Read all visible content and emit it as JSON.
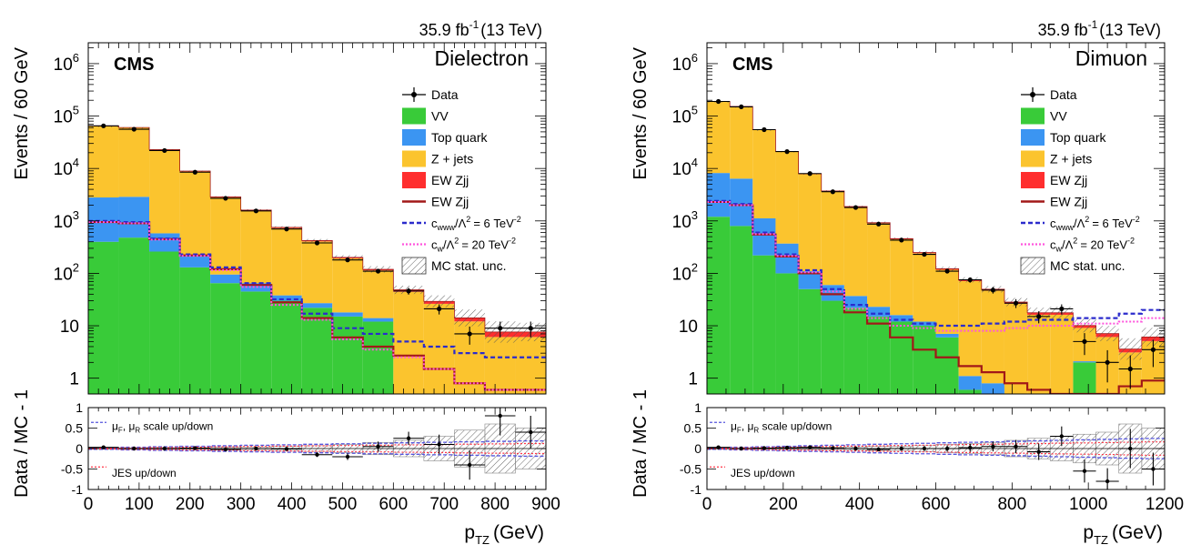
{
  "chart_data": [
    {
      "type": "histogram",
      "channel_label": "Dielectron",
      "experiment_label": "CMS",
      "lumi_label": "35.9 fb",
      "lumi_sup": "-1",
      "energy_label": "(13 TeV)",
      "ylabel": "Events / 60 GeV",
      "ratio_ylabel": "Data / MC - 1",
      "xlabel_main": "p",
      "xlabel_sub": "TZ",
      "xlabel_unit": "(GeV)",
      "x_ticks": [
        0,
        100,
        200,
        300,
        400,
        500,
        600,
        700,
        800,
        900
      ],
      "y_ticks": [
        {
          "value": 1,
          "base": "1",
          "exp": ""
        },
        {
          "value": 10,
          "base": "10",
          "exp": ""
        },
        {
          "value": 100,
          "base": "10",
          "exp": "2"
        },
        {
          "value": 1000,
          "base": "10",
          "exp": "3"
        },
        {
          "value": 10000,
          "base": "10",
          "exp": "4"
        },
        {
          "value": 100000,
          "base": "10",
          "exp": "5"
        },
        {
          "value": 1000000,
          "base": "10",
          "exp": "6"
        }
      ],
      "ratio_ticks": [
        "-1",
        "-0.5",
        "0",
        "0.5",
        "1"
      ],
      "xlim": [
        0,
        900
      ],
      "ylim": [
        0.5,
        2500000
      ],
      "ylog": true,
      "ratio_ylim": [
        -1,
        1
      ],
      "bin_edges": [
        0,
        60,
        120,
        180,
        240,
        300,
        360,
        420,
        480,
        540,
        600,
        660,
        720,
        780,
        840,
        900
      ],
      "stack": {
        "vv": [
          400,
          480,
          260,
          130,
          65,
          45,
          30,
          22,
          15,
          12,
          0,
          0,
          0,
          0,
          0
        ],
        "top": [
          2400,
          2400,
          320,
          90,
          30,
          20,
          8,
          5,
          3,
          2,
          0.4,
          0.2,
          0.1,
          0.1,
          0.1
        ],
        "zjets": [
          61000,
          57000,
          22000,
          8500,
          2700,
          1500,
          690,
          380,
          175,
          100,
          44,
          26,
          12,
          6,
          6
        ],
        "ewzjj": [
          600,
          600,
          400,
          200,
          80,
          40,
          25,
          15,
          8,
          5,
          4,
          3,
          2,
          1.5,
          1.5
        ]
      },
      "ewzjj_line": [
        950,
        900,
        450,
        220,
        120,
        60,
        28,
        14,
        6,
        4,
        2.7,
        1.5,
        0.8,
        0.6,
        0.6
      ],
      "cwww_line": [
        1000,
        950,
        460,
        230,
        130,
        65,
        32,
        17,
        9,
        7,
        5,
        4,
        3,
        2.5,
        2.5
      ],
      "cw_line": [
        950,
        900,
        440,
        215,
        115,
        55,
        25,
        13,
        5.5,
        3.5,
        2.5,
        1.5,
        0.8,
        0.6,
        0.6
      ],
      "data": [
        65000,
        56000,
        22000,
        8500,
        2700,
        1550,
        700,
        380,
        180,
        110,
        46,
        21,
        7,
        9,
        9
      ],
      "ratio": [
        0.03,
        0.0,
        0.0,
        0.01,
        -0.02,
        0.0,
        -0.01,
        -0.15,
        -0.2,
        0.05,
        0.25,
        0.1,
        -0.4,
        0.8,
        0.4
      ],
      "ratio_unc": [
        0.01,
        0.01,
        0.02,
        0.02,
        0.03,
        0.04,
        0.05,
        0.07,
        0.1,
        0.15,
        0.2,
        0.3,
        0.45,
        0.6,
        0.5
      ],
      "legend": {
        "data": "Data",
        "vv": "VV",
        "top": "Top quark",
        "zjets": "Z + jets",
        "ewzjj": "EW Zjj",
        "ewzjj_line": "EW Zjj",
        "cwww": "c",
        "cwww_sub": "www",
        "cwww_rest": "/Λ",
        "cwww_val": "= 6 TeV",
        "cw": "c",
        "cw_sub": "w",
        "cw_rest": "/Λ",
        "cw_val": "= 20 TeV",
        "sq": "2",
        "neg2": "-2",
        "unc": "MC stat. unc."
      },
      "ratio_legend": {
        "mu_line": "μ",
        "mu_f": "F",
        "mu_mid": ", μ",
        "mu_r": "R",
        "mu_rest": " scale up/down",
        "jes": "JES up/down"
      },
      "colors": {
        "vv": "#39cb39",
        "top": "#3b95f2",
        "zjets": "#fbc42e",
        "ewzjj": "#ff2e2e",
        "ewzjj_line": "#a21818",
        "cwww": "#2b2bcc",
        "cw": "#ff55dd"
      }
    },
    {
      "type": "histogram",
      "channel_label": "Dimuon",
      "experiment_label": "CMS",
      "lumi_label": "35.9 fb",
      "lumi_sup": "-1",
      "energy_label": "(13 TeV)",
      "ylabel": "Events / 60 GeV",
      "ratio_ylabel": "Data / MC - 1",
      "xlabel_main": "p",
      "xlabel_sub": "TZ",
      "xlabel_unit": "(GeV)",
      "x_ticks": [
        0,
        200,
        400,
        600,
        800,
        1000,
        1200
      ],
      "y_ticks": [
        {
          "value": 1,
          "base": "1",
          "exp": ""
        },
        {
          "value": 10,
          "base": "10",
          "exp": ""
        },
        {
          "value": 100,
          "base": "10",
          "exp": "2"
        },
        {
          "value": 1000,
          "base": "10",
          "exp": "3"
        },
        {
          "value": 10000,
          "base": "10",
          "exp": "4"
        },
        {
          "value": 100000,
          "base": "10",
          "exp": "5"
        },
        {
          "value": 1000000,
          "base": "10",
          "exp": "6"
        }
      ],
      "ratio_ticks": [
        "-1",
        "-0.5",
        "0",
        "0.5",
        "1"
      ],
      "xlim": [
        0,
        1200
      ],
      "ylim": [
        0.5,
        2500000
      ],
      "ylog": true,
      "ratio_ylim": [
        -1,
        1
      ],
      "bin_edges": [
        0,
        60,
        120,
        180,
        240,
        300,
        360,
        420,
        480,
        540,
        600,
        660,
        720,
        780,
        840,
        900,
        960,
        1020,
        1080,
        1140,
        1200
      ],
      "stack": {
        "vv": [
          1200,
          800,
          220,
          100,
          50,
          30,
          22,
          15,
          12,
          10,
          6,
          0.6,
          0.4,
          0,
          0,
          0,
          2,
          0,
          0,
          0
        ],
        "top": [
          7000,
          5600,
          900,
          270,
          60,
          30,
          15,
          8,
          4,
          2,
          1,
          0.5,
          0.4,
          0.3,
          0.2,
          0.2,
          0.1,
          0.1,
          0.1,
          0.1
        ],
        "zjets": [
          180000,
          145000,
          53000,
          20500,
          7700,
          3600,
          1800,
          880,
          430,
          230,
          110,
          70,
          46,
          26,
          16,
          16,
          7,
          6,
          3,
          5
        ],
        "ewzjj": [
          1200,
          1000,
          600,
          300,
          130,
          70,
          40,
          20,
          12,
          8,
          5,
          4,
          3,
          2,
          1.5,
          1.5,
          1,
          1,
          0.5,
          1
        ]
      },
      "ewzjj_line": [
        2300,
        2000,
        550,
        210,
        100,
        40,
        18,
        11,
        6,
        3.5,
        2.5,
        1.7,
        1.3,
        0.8,
        0.6,
        0.5,
        0.5,
        0.4,
        0.7,
        0.9
      ],
      "cwww_line": [
        2400,
        2100,
        600,
        230,
        115,
        50,
        25,
        17,
        13,
        11,
        10,
        10,
        11,
        12,
        13,
        13,
        14,
        14,
        17,
        20
      ],
      "cw_line": [
        2300,
        2000,
        560,
        215,
        105,
        45,
        21,
        14,
        10,
        9,
        8,
        8,
        8,
        9,
        10,
        10,
        11,
        11,
        12,
        14
      ],
      "data": [
        190000,
        150000,
        55000,
        21000,
        8000,
        3600,
        1800,
        870,
        430,
        230,
        110,
        75,
        48,
        27,
        15,
        21,
        5,
        2,
        1.5,
        3.5
      ],
      "ratio": [
        0.03,
        0.0,
        0.01,
        0.02,
        0.03,
        0.01,
        0.0,
        -0.02,
        0.0,
        0.0,
        0.0,
        0.02,
        0.05,
        0.05,
        -0.08,
        0.3,
        -0.55,
        -0.8,
        0.0,
        -0.5
      ],
      "ratio_unc": [
        0.01,
        0.01,
        0.01,
        0.02,
        0.02,
        0.03,
        0.04,
        0.05,
        0.05,
        0.07,
        0.1,
        0.12,
        0.15,
        0.2,
        0.25,
        0.3,
        0.35,
        0.4,
        0.6,
        0.5
      ],
      "legend": {
        "data": "Data",
        "vv": "VV",
        "top": "Top quark",
        "zjets": "Z + jets",
        "ewzjj": "EW Zjj",
        "ewzjj_line": "EW Zjj",
        "cwww": "c",
        "cwww_sub": "www",
        "cwww_rest": "/Λ",
        "cwww_val": "= 6 TeV",
        "cw": "c",
        "cw_sub": "w",
        "cw_rest": "/Λ",
        "cw_val": "= 20 TeV",
        "sq": "2",
        "neg2": "-2",
        "unc": "MC stat. unc."
      },
      "ratio_legend": {
        "mu_line": "μ",
        "mu_f": "F",
        "mu_mid": ", μ",
        "mu_r": "R",
        "mu_rest": " scale up/down",
        "jes": "JES up/down"
      },
      "colors": {
        "vv": "#39cb39",
        "top": "#3b95f2",
        "zjets": "#fbc42e",
        "ewzjj": "#ff2e2e",
        "ewzjj_line": "#a21818",
        "cwww": "#2b2bcc",
        "cw": "#ff55dd"
      }
    }
  ]
}
